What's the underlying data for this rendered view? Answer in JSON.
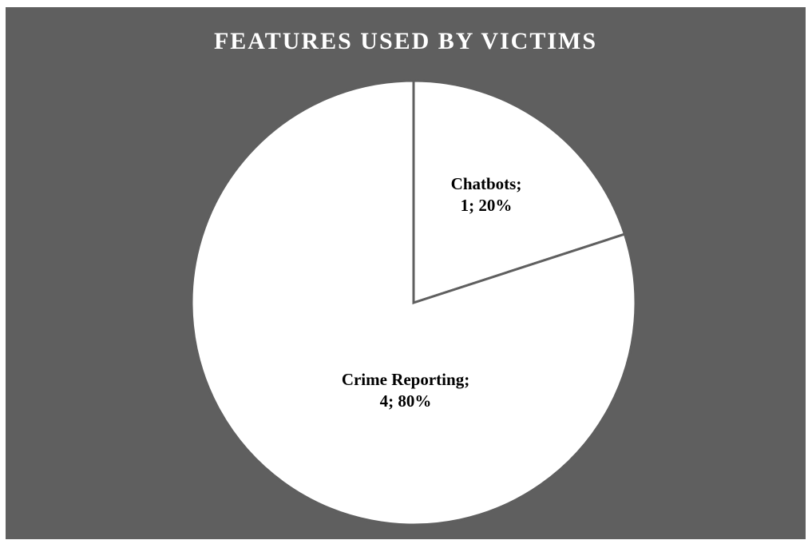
{
  "chart_data": {
    "type": "pie",
    "title": "FEATURES USED BY VICTIMS",
    "categories": [
      "Chatbots",
      "Crime Reporting"
    ],
    "values": [
      1,
      4
    ],
    "percentages": [
      "20%",
      "80%"
    ],
    "data_labels": [
      [
        "Chatbots;",
        "1; 20%"
      ],
      [
        "Crime Reporting;",
        "4; 80%"
      ]
    ],
    "start_angle_deg": 0,
    "direction": "clockwise",
    "legend": "none"
  },
  "colors": {
    "background": "#5f5f5f",
    "slice_fill": "#ffffff",
    "slice_border": "#5f5f5f",
    "title_text": "#ffffff",
    "label_text": "#000000"
  }
}
